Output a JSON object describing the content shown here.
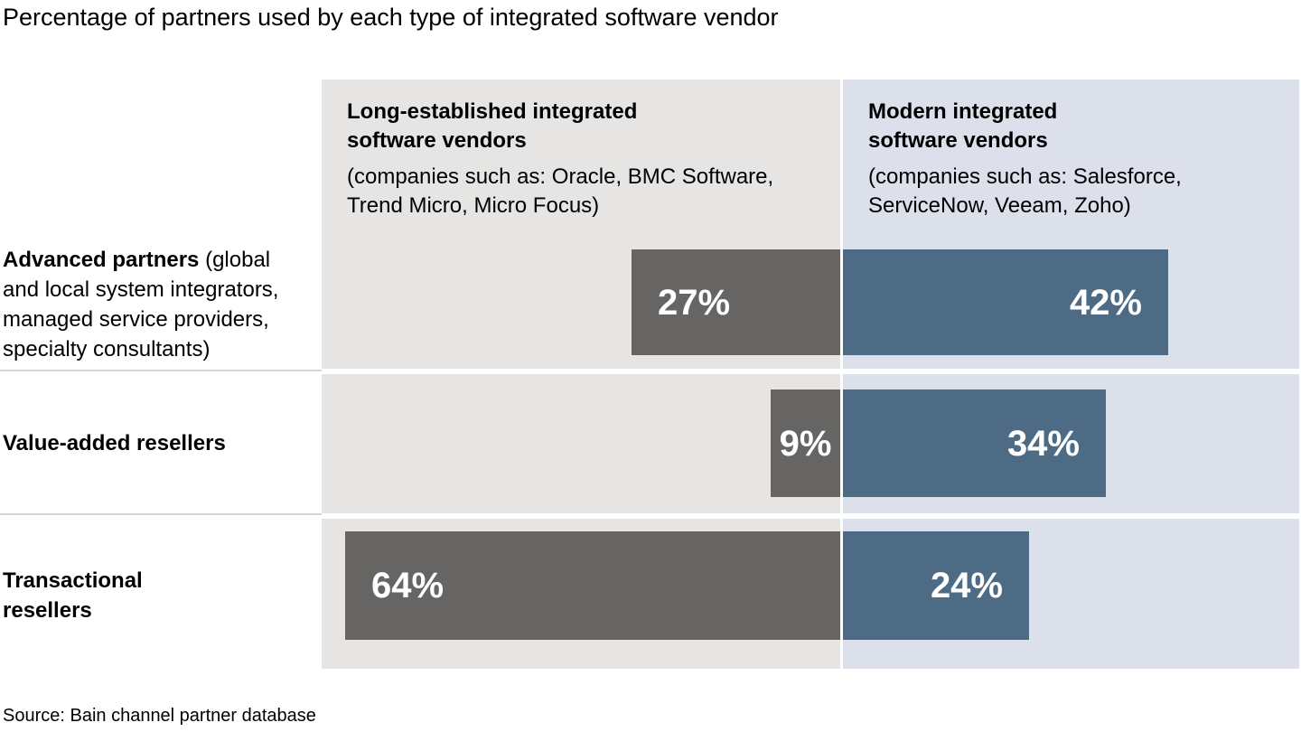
{
  "title": "Percentage of partners used by each type of integrated software vendor",
  "source": "Source: Bain channel partner database",
  "columns": [
    {
      "title": "Long-established integrated software vendors",
      "title_lines": [
        "Long-established integrated",
        "software vendors"
      ],
      "subtitle": "(companies such as: Oracle, BMC Software, Trend Micro, Micro Focus)",
      "subtitle_lines": [
        "(companies such as: Oracle, BMC Software,",
        "Trend Micro, Micro Focus)"
      ],
      "bg_color": "#e6e5e3"
    },
    {
      "title": "Modern integrated software vendors",
      "title_lines": [
        "Modern integrated",
        "software vendors"
      ],
      "subtitle": "(companies such as: Salesforce, ServiceNow, Veeam, Zoho)",
      "subtitle_lines": [
        "(companies such as: Salesforce,",
        "ServiceNow, Veeam, Zoho)"
      ],
      "bg_color": "#dbe0ea"
    }
  ],
  "rows": [
    {
      "label_bold": "Advanced partners",
      "label_lines": [
        " (global",
        "and local system integrators,",
        "managed service providers,",
        "specialty consultants)"
      ]
    },
    {
      "label_bold": "Value-added resellers",
      "label_lines": []
    },
    {
      "label_bold": "Transactional resellers",
      "label_lines": [
        "Transactional",
        "resellers"
      ]
    }
  ],
  "chart_data": {
    "type": "bar",
    "orientation": "horizontal",
    "layout": "back-to-back-paired",
    "title": "Percentage of partners used by each type of integrated software vendor",
    "categories": [
      "Advanced partners (global and local system integrators, managed service providers, specialty consultants)",
      "Value-added resellers",
      "Transactional resellers"
    ],
    "series": [
      {
        "name": "Long-established integrated software vendors",
        "examples": "(companies such as: Oracle, BMC Software, Trend Micro, Micro Focus)",
        "values": [
          27,
          9,
          64
        ],
        "labels": [
          "27%",
          "9%",
          "64%"
        ],
        "color": "#666563"
      },
      {
        "name": "Modern integrated software vendors",
        "examples": "(companies such as: Salesforce, ServiceNow, Veeam, Zoho)",
        "values": [
          42,
          34,
          24
        ],
        "labels": [
          "42%",
          "34%",
          "24%"
        ],
        "color": "#4e6b85"
      }
    ],
    "unit": "%",
    "xlim": [
      0,
      67
    ],
    "grid": false,
    "legend_position": "column-headers",
    "source": "Source: Bain channel partner database"
  }
}
